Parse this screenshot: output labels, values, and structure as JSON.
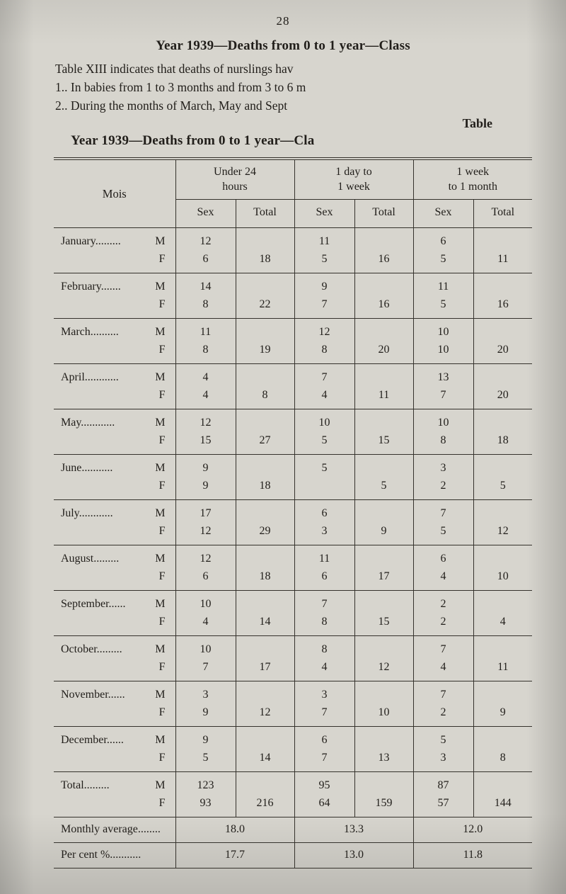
{
  "page": {
    "number": "28",
    "heading": "Year 1939—Deaths from 0 to 1 year—Class",
    "para_lines": [
      "Table XIII indicates that deaths of nurslings hav",
      "1..  In babies from 1 to 3 months and from 3 to 6 m",
      "2..  During the months of March, May and Sept"
    ],
    "table_word": "Table",
    "table_heading": "Year 1939—Deaths from 0 to 1 year—Cla"
  },
  "table": {
    "mois_header": "Mois",
    "groups": [
      [
        "Under 24",
        "hours"
      ],
      [
        "1 day to",
        "1 week"
      ],
      [
        "1 week",
        "to 1 month"
      ]
    ],
    "sex_label": "Sex",
    "total_label": "Total",
    "m_label": "M",
    "f_label": "F",
    "rows": [
      {
        "month": "January.........",
        "m": [
          "12",
          "11",
          "6"
        ],
        "f": [
          "6",
          "5",
          "5"
        ],
        "t": [
          "18",
          "16",
          "11"
        ]
      },
      {
        "month": "February.......",
        "m": [
          "14",
          "9",
          "11"
        ],
        "f": [
          "8",
          "7",
          "5"
        ],
        "t": [
          "22",
          "16",
          "16"
        ]
      },
      {
        "month": "March..........",
        "m": [
          "11",
          "12",
          "10"
        ],
        "f": [
          "8",
          "8",
          "10"
        ],
        "t": [
          "19",
          "20",
          "20"
        ]
      },
      {
        "month": "April............",
        "m": [
          "4",
          "7",
          "13"
        ],
        "f": [
          "4",
          "4",
          "7"
        ],
        "t": [
          "8",
          "11",
          "20"
        ]
      },
      {
        "month": "May............",
        "m": [
          "12",
          "10",
          "10"
        ],
        "f": [
          "15",
          "5",
          "8"
        ],
        "t": [
          "27",
          "15",
          "18"
        ]
      },
      {
        "month": "June...........",
        "m": [
          "9",
          "5",
          "3"
        ],
        "f": [
          "9",
          "",
          "2"
        ],
        "t": [
          "18",
          "5",
          "5"
        ]
      },
      {
        "month": "July............",
        "m": [
          "17",
          "6",
          "7"
        ],
        "f": [
          "12",
          "3",
          "5"
        ],
        "t": [
          "29",
          "9",
          "12"
        ]
      },
      {
        "month": "August.........",
        "m": [
          "12",
          "11",
          "6"
        ],
        "f": [
          "6",
          "6",
          "4"
        ],
        "t": [
          "18",
          "17",
          "10"
        ]
      },
      {
        "month": "September......",
        "m": [
          "10",
          "7",
          "2"
        ],
        "f": [
          "4",
          "8",
          "2"
        ],
        "t": [
          "14",
          "15",
          "4"
        ]
      },
      {
        "month": "October.........",
        "m": [
          "10",
          "8",
          "7"
        ],
        "f": [
          "7",
          "4",
          "4"
        ],
        "t": [
          "17",
          "12",
          "11"
        ]
      },
      {
        "month": "November......",
        "m": [
          "3",
          "3",
          "7"
        ],
        "f": [
          "9",
          "7",
          "2"
        ],
        "t": [
          "12",
          "10",
          "9"
        ]
      },
      {
        "month": "December......",
        "m": [
          "9",
          "6",
          "5"
        ],
        "f": [
          "5",
          "7",
          "3"
        ],
        "t": [
          "14",
          "13",
          "8"
        ]
      },
      {
        "month": "Total.........",
        "m": [
          "123",
          "95",
          "87"
        ],
        "f": [
          "93",
          "64",
          "57"
        ],
        "t": [
          "216",
          "159",
          "144"
        ]
      }
    ],
    "monthly_average": {
      "label": "Monthly average........",
      "values": [
        "18.0",
        "13.3",
        "12.0"
      ]
    },
    "percent": {
      "label": "Per cent %...........",
      "values": [
        "17.7",
        "13.0",
        "11.8"
      ]
    }
  }
}
